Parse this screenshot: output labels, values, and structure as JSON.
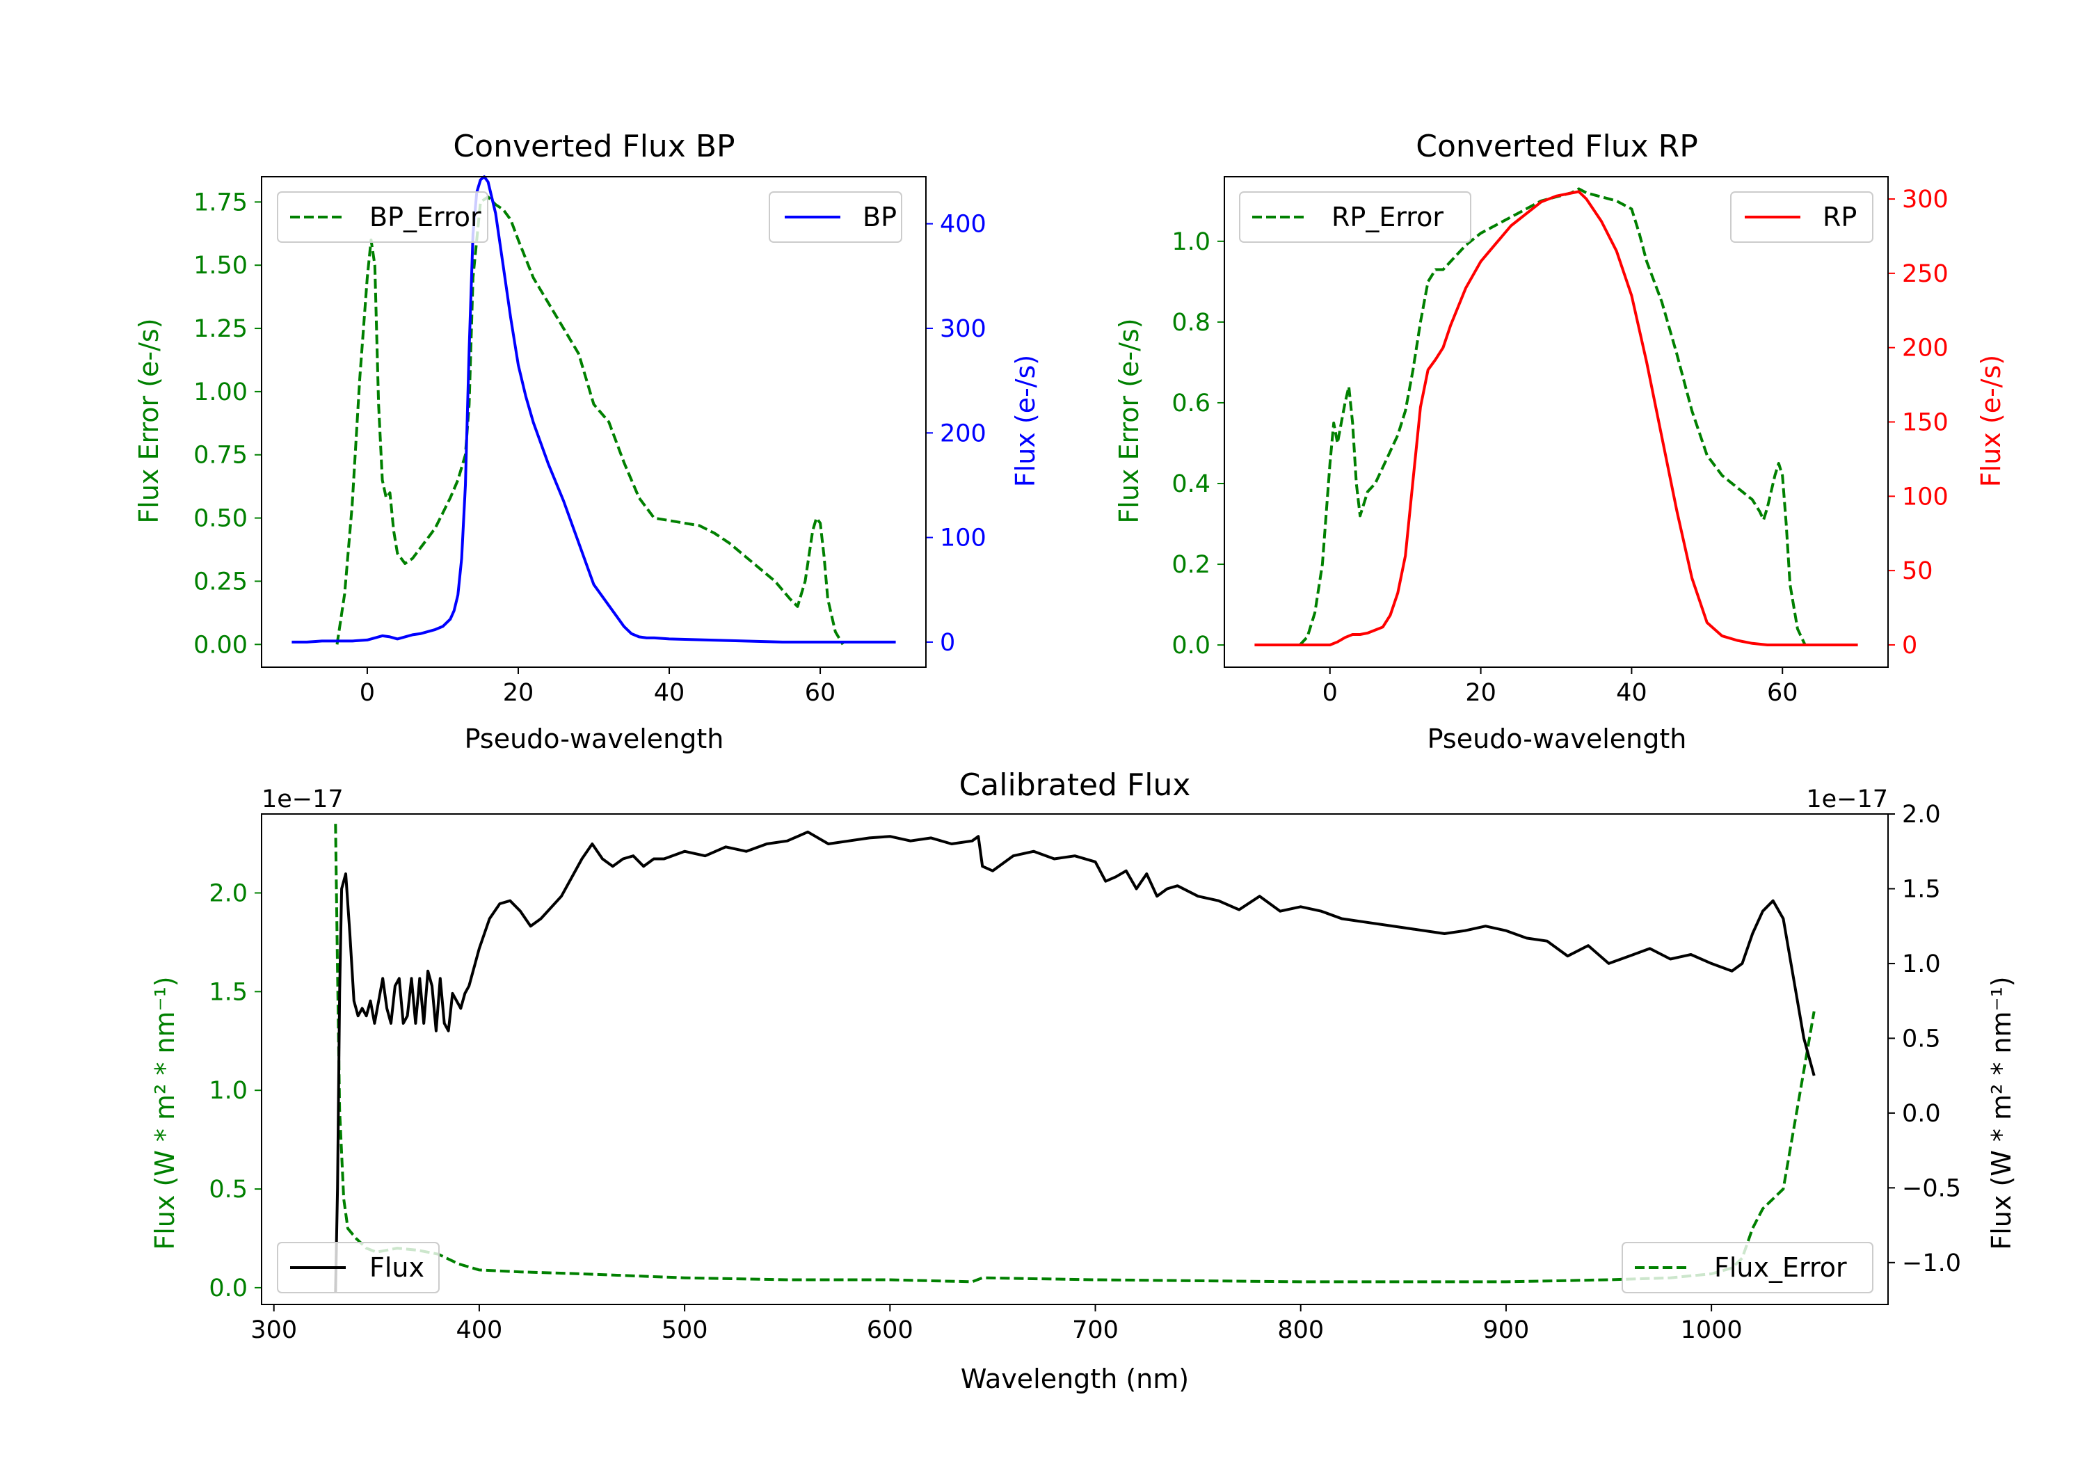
{
  "colors": {
    "bp": "#0000ff",
    "rp": "#ff0000",
    "error": "#008000",
    "flux": "#000000"
  },
  "chart_data": [
    {
      "id": "bp",
      "type": "line",
      "title": "Converted Flux BP",
      "xlabel": "Pseudo-wavelength",
      "ylabel_left": "Flux Error (e-/s)",
      "ylabel_right": "Flux (e-/s)",
      "xlim": [
        -14,
        74
      ],
      "ylim_left": [
        -0.09,
        1.85
      ],
      "ylim_right": [
        -24,
        445
      ],
      "xticks": [
        0,
        20,
        40,
        60
      ],
      "yticks_left": [
        "0.00",
        "0.25",
        "0.50",
        "0.75",
        "1.00",
        "1.25",
        "1.50",
        "1.75"
      ],
      "yticks_right": [
        "0",
        "100",
        "200",
        "300",
        "400"
      ],
      "legend_left": "BP_Error",
      "legend_right": "BP",
      "series": [
        {
          "name": "BP_Error",
          "axis": "left",
          "style": "dashed",
          "color": "#008000",
          "x": [
            -4,
            -3,
            -2,
            -1,
            0,
            0.5,
            1,
            1.5,
            2,
            2.5,
            3,
            3.5,
            4,
            5,
            6,
            7,
            8,
            9,
            10,
            11,
            12,
            13,
            13.5,
            14,
            15,
            16,
            17,
            18,
            19,
            20,
            22,
            24,
            26,
            28,
            30,
            32,
            34,
            36,
            38,
            40,
            42,
            44,
            46,
            48,
            50,
            52,
            54,
            56,
            57,
            58,
            59,
            59.5,
            60,
            60.5,
            61,
            62,
            63
          ],
          "values": [
            0.0,
            0.2,
            0.55,
            1.05,
            1.45,
            1.6,
            1.5,
            0.95,
            0.65,
            0.58,
            0.6,
            0.45,
            0.36,
            0.32,
            0.34,
            0.38,
            0.42,
            0.46,
            0.52,
            0.58,
            0.65,
            0.75,
            0.95,
            1.45,
            1.75,
            1.77,
            1.74,
            1.72,
            1.68,
            1.6,
            1.45,
            1.35,
            1.25,
            1.15,
            0.95,
            0.88,
            0.72,
            0.58,
            0.5,
            0.49,
            0.48,
            0.47,
            0.44,
            0.4,
            0.35,
            0.3,
            0.25,
            0.18,
            0.15,
            0.25,
            0.45,
            0.5,
            0.48,
            0.35,
            0.18,
            0.05,
            0.0
          ]
        },
        {
          "name": "BP",
          "axis": "right",
          "style": "solid",
          "color": "#0000ff",
          "x": [
            -10,
            -8,
            -6,
            -4,
            -2,
            0,
            1,
            2,
            3,
            4,
            5,
            6,
            7,
            8,
            9,
            10,
            11,
            11.5,
            12,
            12.5,
            13,
            13.5,
            14,
            14.5,
            15,
            15.5,
            16,
            17,
            18,
            19,
            20,
            21,
            22,
            24,
            26,
            28,
            30,
            32,
            34,
            35,
            36,
            37,
            38,
            40,
            45,
            50,
            55,
            60,
            65,
            70
          ],
          "values": [
            0,
            0,
            1,
            1,
            1,
            2,
            4,
            6,
            5,
            3,
            5,
            7,
            8,
            10,
            12,
            15,
            22,
            30,
            45,
            80,
            150,
            280,
            390,
            430,
            442,
            445,
            440,
            410,
            360,
            310,
            265,
            235,
            210,
            170,
            135,
            95,
            55,
            35,
            15,
            8,
            5,
            4,
            4,
            3,
            2,
            1,
            0,
            0,
            0,
            0
          ]
        }
      ]
    },
    {
      "id": "rp",
      "type": "line",
      "title": "Converted Flux RP",
      "xlabel": "Pseudo-wavelength",
      "ylabel_left": "Flux Error (e-/s)",
      "ylabel_right": "Flux (e-/s)",
      "xlim": [
        -14,
        74
      ],
      "ylim_left": [
        -0.055,
        1.16
      ],
      "ylim_right": [
        -15,
        315
      ],
      "xticks": [
        0,
        20,
        40,
        60
      ],
      "yticks_left": [
        "0.0",
        "0.2",
        "0.4",
        "0.6",
        "0.8",
        "1.0"
      ],
      "yticks_right": [
        "0",
        "50",
        "100",
        "150",
        "200",
        "250",
        "300"
      ],
      "legend_left": "RP_Error",
      "legend_right": "RP",
      "series": [
        {
          "name": "RP_Error",
          "axis": "left",
          "style": "dashed",
          "color": "#008000",
          "x": [
            -4,
            -3,
            -2,
            -1,
            0,
            0.5,
            1,
            1.5,
            2,
            2.5,
            3,
            3.5,
            4,
            5,
            6,
            7,
            8,
            9,
            10,
            11,
            12,
            13,
            14,
            15,
            16,
            18,
            20,
            22,
            24,
            26,
            28,
            30,
            32,
            33,
            34,
            36,
            38,
            40,
            41,
            42,
            44,
            46,
            48,
            50,
            52,
            54,
            56,
            57,
            57.5,
            58,
            59,
            59.5,
            60,
            60.5,
            61,
            62,
            63
          ],
          "values": [
            0.0,
            0.02,
            0.08,
            0.2,
            0.45,
            0.55,
            0.5,
            0.55,
            0.6,
            0.64,
            0.55,
            0.4,
            0.32,
            0.38,
            0.4,
            0.44,
            0.48,
            0.52,
            0.58,
            0.68,
            0.8,
            0.9,
            0.93,
            0.93,
            0.95,
            0.99,
            1.02,
            1.04,
            1.06,
            1.08,
            1.1,
            1.11,
            1.12,
            1.13,
            1.12,
            1.11,
            1.1,
            1.08,
            1.02,
            0.95,
            0.85,
            0.72,
            0.58,
            0.47,
            0.42,
            0.39,
            0.36,
            0.33,
            0.31,
            0.34,
            0.42,
            0.45,
            0.42,
            0.3,
            0.15,
            0.04,
            0.0
          ]
        },
        {
          "name": "RP",
          "axis": "right",
          "style": "solid",
          "color": "#ff0000",
          "x": [
            -10,
            -5,
            -2,
            0,
            1,
            2,
            3,
            4,
            5,
            6,
            7,
            8,
            9,
            10,
            11,
            12,
            13,
            14,
            15,
            16,
            18,
            20,
            22,
            24,
            26,
            28,
            30,
            32,
            33,
            34,
            36,
            38,
            40,
            42,
            44,
            46,
            48,
            50,
            52,
            54,
            56,
            58,
            60,
            65,
            70
          ],
          "values": [
            0,
            0,
            0,
            0,
            2,
            5,
            7,
            7,
            8,
            10,
            12,
            20,
            35,
            60,
            110,
            160,
            185,
            192,
            200,
            215,
            240,
            258,
            270,
            282,
            290,
            298,
            302,
            304,
            305,
            300,
            285,
            265,
            235,
            190,
            140,
            90,
            45,
            15,
            6,
            3,
            1,
            0,
            0,
            0,
            0
          ]
        }
      ]
    },
    {
      "id": "calibrated",
      "type": "line",
      "title": "Calibrated Flux",
      "xlabel": "Wavelength (nm)",
      "ylabel_left": "Flux (W * m² * nm⁻¹)",
      "ylabel_right": "Flux (W * m² * nm⁻¹)",
      "offset_left": "1e−17",
      "offset_right": "1e−17",
      "xlim": [
        294,
        1086
      ],
      "ylim_left": [
        -0.085,
        2.4
      ],
      "ylim_right": [
        -1.28,
        2.0
      ],
      "xticks": [
        300,
        400,
        500,
        600,
        700,
        800,
        900,
        1000
      ],
      "yticks_left": [
        "0.0",
        "0.5",
        "1.0",
        "1.5",
        "2.0"
      ],
      "yticks_right": [
        "−1.0",
        "−0.5",
        "0.0",
        "0.5",
        "1.0",
        "1.5",
        "2.0"
      ],
      "legend_left": "Flux",
      "legend_right": "Flux_Error",
      "series": [
        {
          "name": "Flux_Error",
          "axis": "left",
          "style": "dashed",
          "color": "#008000",
          "x": [
            330,
            331,
            332,
            334,
            336,
            340,
            345,
            350,
            360,
            370,
            380,
            390,
            400,
            420,
            450,
            500,
            550,
            600,
            640,
            645,
            700,
            800,
            900,
            950,
            980,
            1000,
            1010,
            1015,
            1020,
            1025,
            1030,
            1035,
            1040,
            1045,
            1050
          ],
          "values": [
            2.35,
            1.6,
            0.9,
            0.45,
            0.3,
            0.25,
            0.2,
            0.18,
            0.2,
            0.19,
            0.17,
            0.12,
            0.09,
            0.08,
            0.07,
            0.05,
            0.04,
            0.04,
            0.03,
            0.05,
            0.04,
            0.03,
            0.03,
            0.04,
            0.05,
            0.07,
            0.1,
            0.15,
            0.3,
            0.4,
            0.45,
            0.5,
            0.8,
            1.1,
            1.4
          ]
        },
        {
          "name": "Flux",
          "axis": "right",
          "style": "solid",
          "color": "#000000",
          "x": [
            330,
            331,
            332,
            333,
            335,
            337,
            339,
            341,
            343,
            345,
            347,
            349,
            351,
            353,
            355,
            357,
            359,
            361,
            363,
            365,
            367,
            369,
            371,
            373,
            375,
            377,
            379,
            381,
            383,
            385,
            387,
            389,
            391,
            393,
            395,
            400,
            405,
            410,
            415,
            420,
            425,
            430,
            440,
            450,
            455,
            460,
            465,
            470,
            475,
            480,
            485,
            490,
            500,
            510,
            520,
            530,
            540,
            550,
            560,
            570,
            580,
            590,
            600,
            610,
            620,
            630,
            640,
            643,
            645,
            650,
            660,
            670,
            680,
            690,
            700,
            705,
            710,
            715,
            720,
            725,
            730,
            735,
            740,
            750,
            760,
            770,
            780,
            790,
            800,
            810,
            820,
            830,
            850,
            870,
            880,
            890,
            900,
            910,
            920,
            930,
            940,
            950,
            960,
            970,
            980,
            990,
            1000,
            1010,
            1015,
            1020,
            1025,
            1030,
            1035,
            1040,
            1045,
            1050
          ],
          "values": [
            -1.2,
            -0.5,
            0.8,
            1.5,
            1.6,
            1.2,
            0.75,
            0.65,
            0.7,
            0.65,
            0.75,
            0.6,
            0.75,
            0.9,
            0.7,
            0.6,
            0.85,
            0.9,
            0.6,
            0.65,
            0.9,
            0.6,
            0.9,
            0.6,
            0.95,
            0.85,
            0.55,
            0.9,
            0.6,
            0.55,
            0.8,
            0.75,
            0.7,
            0.8,
            0.85,
            1.1,
            1.3,
            1.4,
            1.42,
            1.35,
            1.25,
            1.3,
            1.45,
            1.7,
            1.8,
            1.7,
            1.65,
            1.7,
            1.72,
            1.65,
            1.7,
            1.7,
            1.75,
            1.72,
            1.78,
            1.75,
            1.8,
            1.82,
            1.88,
            1.8,
            1.82,
            1.84,
            1.85,
            1.82,
            1.84,
            1.8,
            1.82,
            1.85,
            1.65,
            1.62,
            1.72,
            1.75,
            1.7,
            1.72,
            1.68,
            1.55,
            1.58,
            1.62,
            1.5,
            1.6,
            1.45,
            1.5,
            1.52,
            1.45,
            1.42,
            1.36,
            1.45,
            1.35,
            1.38,
            1.35,
            1.3,
            1.28,
            1.24,
            1.2,
            1.22,
            1.25,
            1.22,
            1.17,
            1.15,
            1.05,
            1.12,
            1.0,
            1.05,
            1.1,
            1.03,
            1.06,
            1.0,
            0.95,
            1.0,
            1.2,
            1.35,
            1.42,
            1.3,
            0.9,
            0.5,
            0.25
          ]
        }
      ]
    }
  ]
}
